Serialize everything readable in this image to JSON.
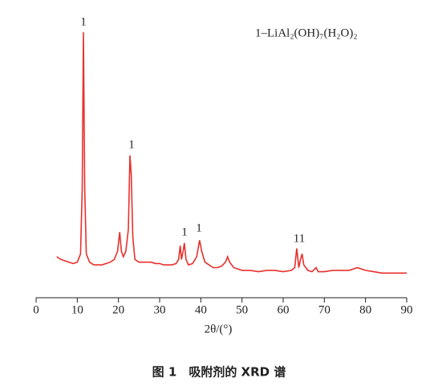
{
  "chart_data": {
    "type": "line",
    "legend_text": "1–LiAl₂(OH)₇(H₂O)₂",
    "annotations": [
      "1",
      "1",
      "1",
      "1",
      "11"
    ],
    "x_label": "2θ/(°)",
    "caption": "图 1　吸附剂的 XRD 谱",
    "color": "#e8302c",
    "xlim": [
      0,
      90
    ],
    "xticks": [
      0,
      10,
      20,
      30,
      40,
      50,
      60,
      70,
      80,
      90
    ],
    "ylim": [
      0,
      100
    ],
    "x": [
      5,
      6,
      7,
      8,
      9,
      10,
      10.8,
      11.2,
      11.5,
      11.8,
      12.2,
      13,
      14,
      15,
      16,
      17,
      18,
      19,
      19.8,
      20.3,
      20.7,
      21.2,
      21.8,
      22.4,
      22.8,
      23.1,
      23.5,
      24,
      25,
      26,
      27,
      28,
      29,
      30,
      31,
      32,
      33,
      34,
      34.6,
      35,
      35.3,
      35.7,
      36,
      36.4,
      37,
      38,
      39,
      39.7,
      40.2,
      41,
      42,
      43,
      44,
      45,
      46,
      46.5,
      47,
      48,
      50,
      52,
      54,
      56,
      58,
      60,
      62,
      62.8,
      63.3,
      63.8,
      64.2,
      64.6,
      65,
      66,
      67,
      68,
      68.5,
      70,
      72,
      74,
      76,
      78,
      80,
      82,
      84,
      86,
      88,
      90
    ],
    "values": [
      15,
      14,
      13.5,
      13,
      12.5,
      13,
      16,
      40,
      97,
      40,
      16,
      13,
      12,
      12,
      12,
      12.5,
      13,
      14,
      17,
      24,
      17,
      15,
      17,
      25,
      52,
      45,
      22,
      14,
      13,
      13,
      13,
      13,
      12.5,
      12.5,
      12,
      12,
      12,
      12.5,
      14,
      19,
      14,
      17,
      20,
      14,
      12,
      12.5,
      15,
      21,
      17,
      13,
      12,
      11,
      11,
      11.5,
      13,
      15,
      13,
      11,
      10,
      10,
      9.5,
      10,
      10,
      9.5,
      10,
      11,
      18,
      11,
      14,
      16,
      12,
      10,
      9.5,
      11,
      9.5,
      9.5,
      10,
      10,
      10,
      11,
      10,
      9.5,
      9,
      9,
      9,
      9
    ]
  }
}
